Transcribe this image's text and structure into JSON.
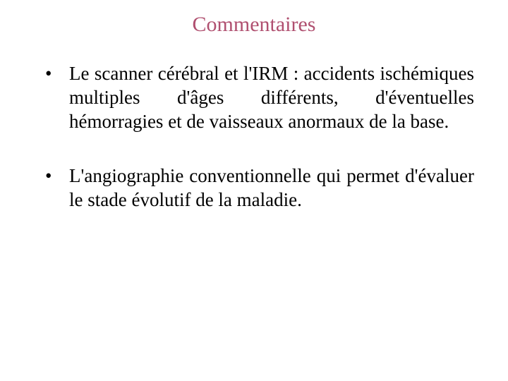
{
  "title": {
    "text": "Commentaires",
    "color": "#b05070",
    "fontsize": 30
  },
  "bullets": [
    {
      "text": " Le scanner cérébral et l'IRM : accidents ischémiques multiples d'âges différents, d'éventuelles hémorragies et de vaisseaux anormaux de la base."
    },
    {
      "text": "L'angiographie conventionnelle qui permet d'évaluer le stade évolutif de la maladie."
    }
  ],
  "colors": {
    "background": "#ffffff",
    "body_text": "#000000"
  }
}
